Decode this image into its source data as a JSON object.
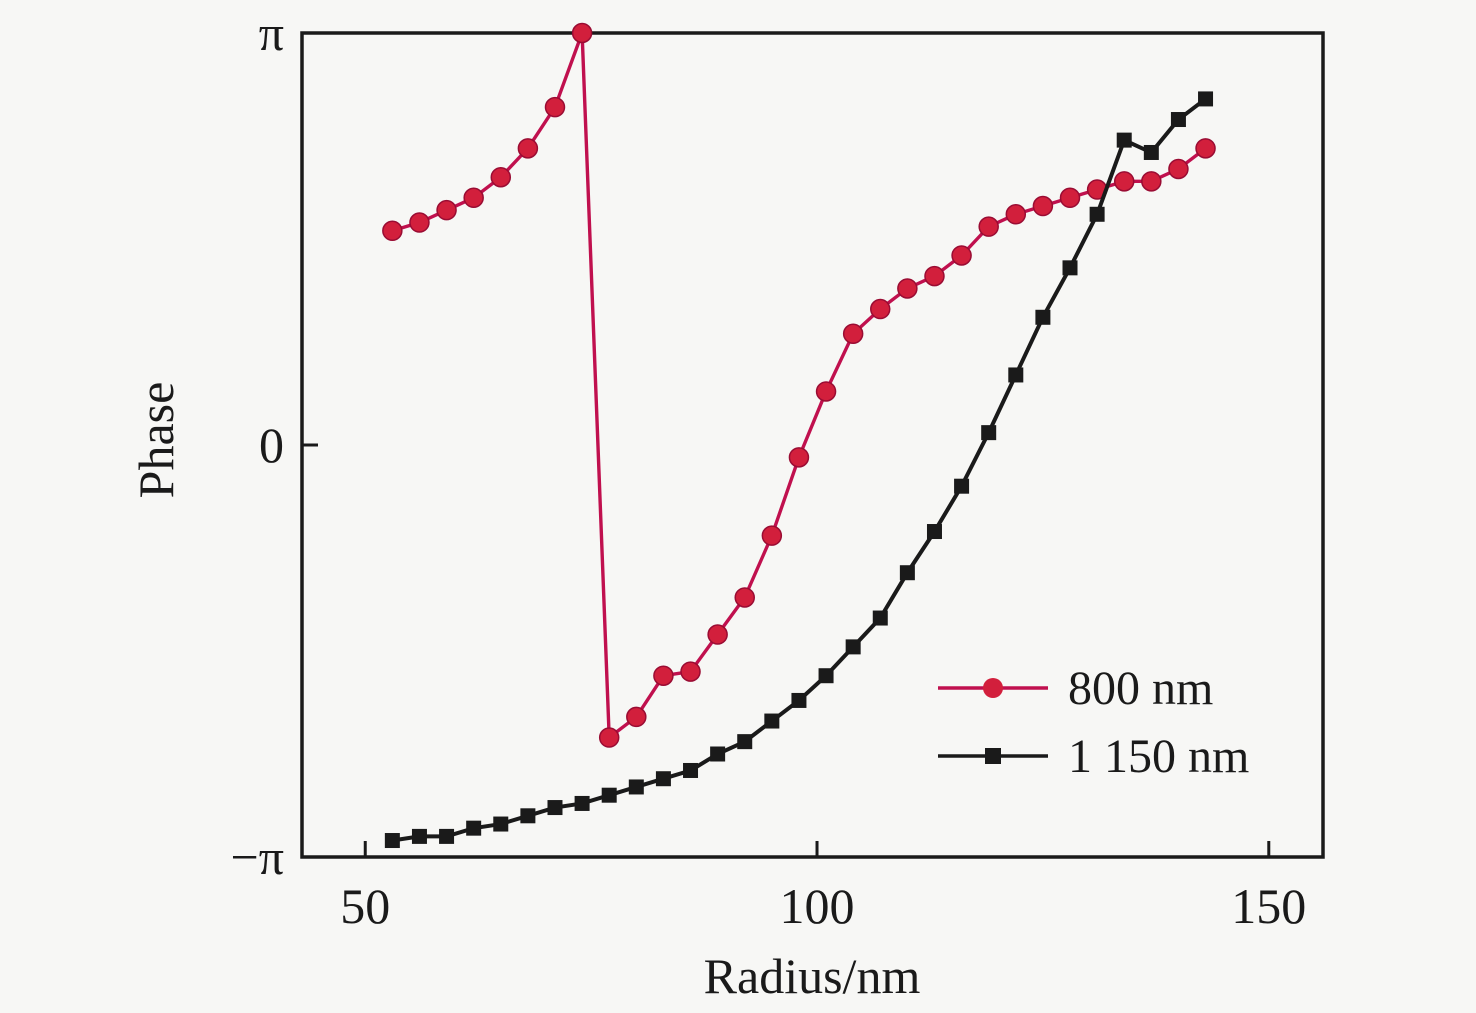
{
  "chart_data": {
    "type": "line",
    "title": "",
    "xlabel": "Radius/nm",
    "ylabel": "Phase",
    "xlim": [
      43,
      156
    ],
    "ylim_pi_units": [
      -1,
      1
    ],
    "x_ticks": [
      50,
      100,
      150
    ],
    "y_ticks": [
      {
        "label": "π",
        "value": 1
      },
      {
        "label": "0",
        "value": 0
      },
      {
        "label": "−π",
        "value": -1
      }
    ],
    "grid": false,
    "legend_position": "inside-lower-right",
    "x": [
      53,
      56,
      59,
      62,
      65,
      68,
      71,
      74,
      77,
      80,
      83,
      86,
      89,
      92,
      95,
      98,
      101,
      104,
      107,
      110,
      113,
      116,
      119,
      122,
      125,
      128,
      131,
      134,
      137,
      140,
      143
    ],
    "x_units": "nm",
    "y_units": "phase in units of pi",
    "series": [
      {
        "name": "800 nm",
        "marker": "circle",
        "color": "#c0104e",
        "marker_color": "#d21f3c",
        "marker_edge": "#9a0c33",
        "values_pi": [
          0.52,
          0.54,
          0.57,
          0.6,
          0.65,
          0.72,
          0.82,
          1.0,
          -0.71,
          -0.66,
          -0.56,
          -0.55,
          -0.46,
          -0.37,
          -0.22,
          -0.03,
          0.13,
          0.27,
          0.33,
          0.38,
          0.41,
          0.46,
          0.53,
          0.56,
          0.58,
          0.6,
          0.62,
          0.64,
          0.64,
          0.67,
          0.72
        ]
      },
      {
        "name": "1 150 nm",
        "marker": "square",
        "color": "#1a1a1a",
        "marker_color": "#1a1a1a",
        "marker_edge": "#1a1a1a",
        "values_pi": [
          -0.96,
          -0.95,
          -0.95,
          -0.93,
          -0.92,
          -0.9,
          -0.88,
          -0.87,
          -0.85,
          -0.83,
          -0.81,
          -0.79,
          -0.75,
          -0.72,
          -0.67,
          -0.62,
          -0.56,
          -0.49,
          -0.42,
          -0.31,
          -0.21,
          -0.1,
          0.03,
          0.17,
          0.31,
          0.43,
          0.56,
          0.74,
          0.71,
          0.79,
          0.84
        ]
      }
    ]
  },
  "colors": {
    "background": "#f7f7f5",
    "axis": "#1a1a1a",
    "text": "#1a1a1a"
  }
}
